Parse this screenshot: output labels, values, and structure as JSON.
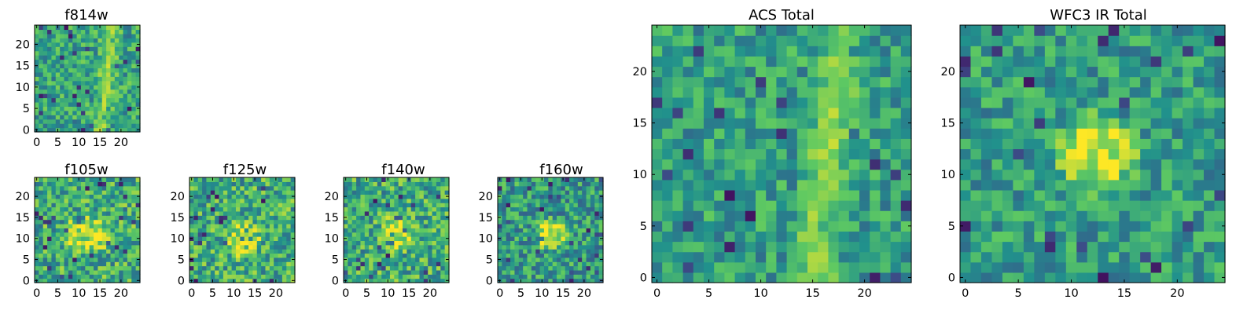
{
  "figure": {
    "colormap": "viridis",
    "colormap_stops": [
      "#440154",
      "#3b528b",
      "#21918c",
      "#5ec962",
      "#fde725"
    ]
  },
  "chart_data": [
    {
      "type": "heatmap",
      "title": "f814w",
      "grid": [
        25,
        25
      ],
      "xlim": [
        0,
        24
      ],
      "ylim": [
        0,
        24
      ],
      "xticks": [
        0,
        5,
        10,
        15,
        20
      ],
      "yticks": [
        0,
        5,
        10,
        15,
        20
      ],
      "feature": {
        "kind": "band",
        "x0": 13.5,
        "x1": 19.5,
        "peak": 0.9
      },
      "base": 0.58,
      "spread": 0.22,
      "seed": 11
    },
    {
      "type": "heatmap",
      "title": "f105w",
      "grid": [
        25,
        25
      ],
      "xlim": [
        0,
        24
      ],
      "ylim": [
        0,
        24
      ],
      "xticks": [
        0,
        5,
        10,
        15,
        20
      ],
      "yticks": [
        0,
        5,
        10,
        15,
        20
      ],
      "feature": {
        "kind": "blob",
        "cx": 12,
        "cy": 11,
        "r": 6,
        "peak": 0.3
      },
      "base": 0.62,
      "spread": 0.26,
      "seed": 23
    },
    {
      "type": "heatmap",
      "title": "f125w",
      "grid": [
        25,
        25
      ],
      "xlim": [
        0,
        24
      ],
      "ylim": [
        0,
        24
      ],
      "xticks": [
        0,
        5,
        10,
        15,
        20
      ],
      "yticks": [
        0,
        5,
        10,
        15,
        20
      ],
      "feature": {
        "kind": "blob",
        "cx": 12,
        "cy": 10,
        "r": 5,
        "peak": 0.3
      },
      "base": 0.62,
      "spread": 0.26,
      "seed": 37
    },
    {
      "type": "heatmap",
      "title": "f140w",
      "grid": [
        25,
        25
      ],
      "xlim": [
        0,
        24
      ],
      "ylim": [
        0,
        24
      ],
      "xticks": [
        0,
        5,
        10,
        15,
        20
      ],
      "yticks": [
        0,
        5,
        10,
        15,
        20
      ],
      "feature": {
        "kind": "blob",
        "cx": 12,
        "cy": 11,
        "r": 5,
        "peak": 0.3
      },
      "base": 0.62,
      "spread": 0.26,
      "seed": 51
    },
    {
      "type": "heatmap",
      "title": "f160w",
      "grid": [
        25,
        25
      ],
      "xlim": [
        0,
        24
      ],
      "ylim": [
        0,
        24
      ],
      "xticks": [
        0,
        5,
        10,
        15,
        20
      ],
      "yticks": [
        0,
        5,
        10,
        15,
        20
      ],
      "feature": {
        "kind": "blob",
        "cx": 12,
        "cy": 11,
        "r": 4.5,
        "peak": 0.45
      },
      "base": 0.55,
      "spread": 0.24,
      "seed": 67
    },
    {
      "type": "heatmap",
      "title": "ACS Total",
      "grid": [
        25,
        25
      ],
      "xlim": [
        0,
        24
      ],
      "ylim": [
        0,
        24
      ],
      "xticks": [
        0,
        5,
        10,
        15,
        20
      ],
      "yticks": [
        0,
        5,
        10,
        15,
        20
      ],
      "feature": {
        "kind": "band",
        "x0": 13.5,
        "x1": 19.5,
        "peak": 0.9
      },
      "base": 0.56,
      "spread": 0.2,
      "seed": 83
    },
    {
      "type": "heatmap",
      "title": "WFC3 IR Total",
      "grid": [
        25,
        25
      ],
      "xlim": [
        0,
        24
      ],
      "ylim": [
        0,
        24
      ],
      "xticks": [
        0,
        5,
        10,
        15,
        20
      ],
      "yticks": [
        0,
        5,
        10,
        15,
        20
      ],
      "feature": {
        "kind": "blob",
        "cx": 12.5,
        "cy": 12,
        "r": 4.5,
        "peak": 0.45
      },
      "base": 0.55,
      "spread": 0.2,
      "seed": 97
    }
  ]
}
